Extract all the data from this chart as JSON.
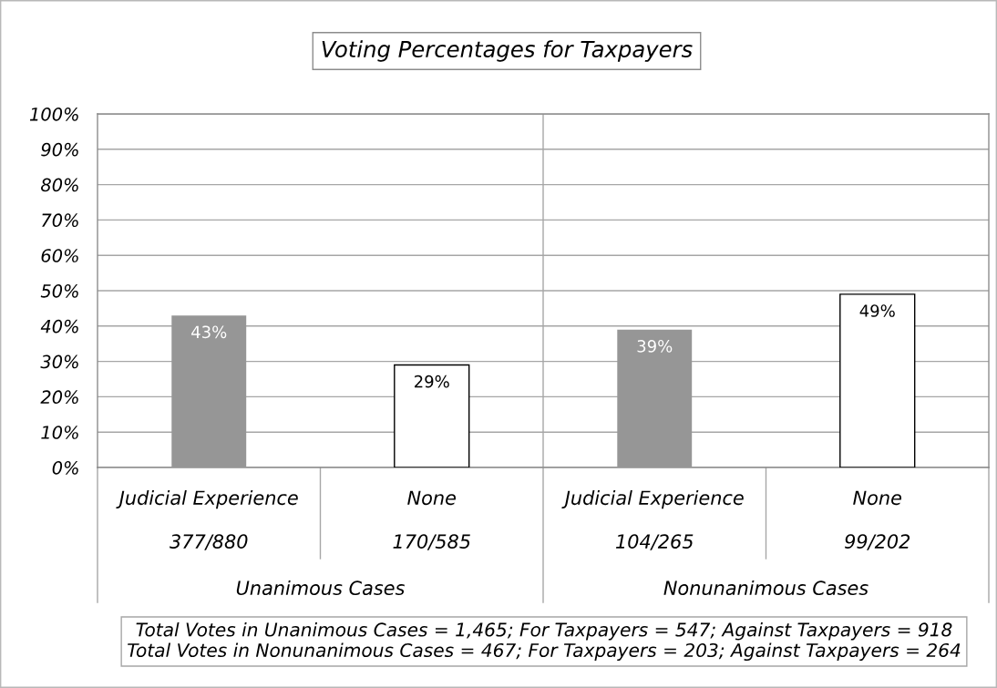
{
  "chart_data": {
    "type": "bar",
    "title": "Voting Percentages for Taxpayers",
    "categories": [
      "Judicial Experience\n377/880",
      "None\n170/585",
      "Judicial Experience\n104/265",
      "None\n99/202"
    ],
    "values": [
      43,
      29,
      39,
      49
    ],
    "colors": [
      "#969696",
      "#ffffff",
      "#969696",
      "#ffffff"
    ],
    "value_labels": [
      "43%",
      "29%",
      "39%",
      "49%"
    ],
    "ylim": [
      0,
      100
    ],
    "yticks": [
      {
        "value": 0,
        "label": "0%"
      },
      {
        "value": 10,
        "label": "10%"
      },
      {
        "value": 20,
        "label": "20%"
      },
      {
        "value": 30,
        "label": "30%"
      },
      {
        "value": 40,
        "label": "40%"
      },
      {
        "value": 50,
        "label": "50%"
      },
      {
        "value": 60,
        "label": "60%"
      },
      {
        "value": 70,
        "label": "70%"
      },
      {
        "value": 80,
        "label": "80%"
      },
      {
        "value": 90,
        "label": "90%"
      },
      {
        "value": 100,
        "label": "100%"
      }
    ],
    "grid": true,
    "annotations": [
      "Unanimous Cases",
      "Nonunanimous Cases",
      "Total Votes in Unanimous Cases = 1,465; For Taxpayers = 547; Against Taxpayers = 918\nTotal Votes in Nonunanimous Cases = 467; For Taxpayers = 203; Against Taxpayers = 264"
    ]
  }
}
